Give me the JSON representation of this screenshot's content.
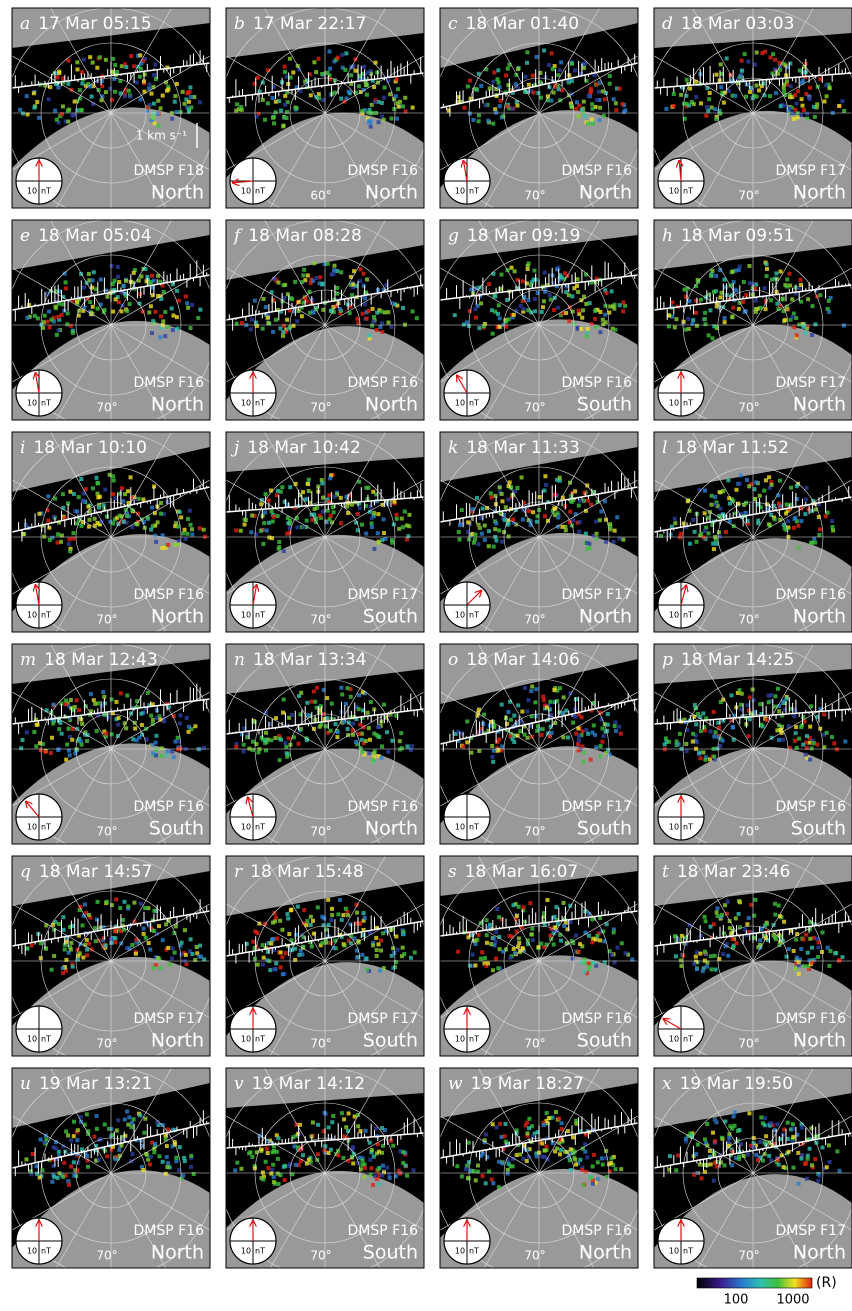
{
  "panels": [
    {
      "letter": "a",
      "time": "17 Mar 05:15",
      "satellite": "DMSP F18",
      "hemisphere": "North",
      "imf_arrow_deg": 0
    },
    {
      "letter": "b",
      "time": "17 Mar 22:17",
      "satellite": "DMSP F16",
      "hemisphere": "North",
      "latitude": "60°",
      "imf_arrow_deg": -95
    },
    {
      "letter": "c",
      "time": "18 Mar 01:40",
      "satellite": "DMSP F16",
      "hemisphere": "North",
      "latitude": "70°",
      "imf_arrow_deg": -10
    },
    {
      "letter": "d",
      "time": "18 Mar 03:03",
      "satellite": "DMSP F17",
      "hemisphere": "North",
      "latitude": "70°",
      "imf_arrow_deg": -5
    },
    {
      "letter": "e",
      "time": "18 Mar 05:04",
      "satellite": "DMSP F16",
      "hemisphere": "North",
      "latitude": "70°",
      "imf_arrow_deg": -10
    },
    {
      "letter": "f",
      "time": "18 Mar 08:28",
      "satellite": "DMSP F16",
      "hemisphere": "North",
      "latitude": "70°",
      "imf_arrow_deg": 0
    },
    {
      "letter": "g",
      "time": "18 Mar 09:19",
      "satellite": "DMSP F16",
      "hemisphere": "South",
      "latitude": "70°",
      "imf_arrow_deg": -30
    },
    {
      "letter": "h",
      "time": "18 Mar 09:51",
      "satellite": "DMSP F17",
      "hemisphere": "North",
      "latitude": "70°",
      "imf_arrow_deg": 0
    },
    {
      "letter": "i",
      "time": "18 Mar 10:10",
      "satellite": "DMSP F16",
      "hemisphere": "North",
      "latitude": "70°",
      "imf_arrow_deg": -10
    },
    {
      "letter": "j",
      "time": "18 Mar 10:42",
      "satellite": "DMSP F17",
      "hemisphere": "South",
      "latitude": "70°",
      "imf_arrow_deg": 10
    },
    {
      "letter": "k",
      "time": "18 Mar 11:33",
      "satellite": "DMSP F17",
      "hemisphere": "North",
      "latitude": "70°",
      "imf_arrow_deg": 45
    },
    {
      "letter": "l",
      "time": "18 Mar 11:52",
      "satellite": "DMSP F16",
      "hemisphere": "North",
      "latitude": "70°",
      "imf_arrow_deg": 15
    },
    {
      "letter": "m",
      "time": "18 Mar 12:43",
      "satellite": "DMSP F16",
      "hemisphere": "South",
      "latitude": "70°",
      "imf_arrow_deg": -40
    },
    {
      "letter": "n",
      "time": "18 Mar 13:34",
      "satellite": "DMSP F16",
      "hemisphere": "North",
      "latitude": "70°",
      "imf_arrow_deg": -15
    },
    {
      "letter": "o",
      "time": "18 Mar 14:06",
      "satellite": "DMSP F17",
      "hemisphere": "South",
      "latitude": "70°"
    },
    {
      "letter": "p",
      "time": "18 Mar 14:25",
      "satellite": "DMSP F16",
      "hemisphere": "South",
      "latitude": "70°",
      "imf_arrow_deg": 0
    },
    {
      "letter": "q",
      "time": "18 Mar 14:57",
      "satellite": "DMSP F17",
      "hemisphere": "North",
      "latitude": "70°"
    },
    {
      "letter": "r",
      "time": "18 Mar 15:48",
      "satellite": "DMSP F17",
      "hemisphere": "South",
      "latitude": "70°",
      "imf_arrow_deg": 0
    },
    {
      "letter": "s",
      "time": "18 Mar 16:07",
      "satellite": "DMSP F16",
      "hemisphere": "South",
      "latitude": "70°",
      "imf_arrow_deg": 0
    },
    {
      "letter": "t",
      "time": "18 Mar 23:46",
      "satellite": "DMSP F16",
      "hemisphere": "North",
      "latitude": "70°",
      "imf_arrow_deg": -60
    },
    {
      "letter": "u",
      "time": "19 Mar 13:21",
      "satellite": "DMSP F16",
      "hemisphere": "North",
      "latitude": "70°",
      "imf_arrow_deg": 0
    },
    {
      "letter": "v",
      "time": "19 Mar 14:12",
      "satellite": "DMSP F16",
      "hemisphere": "South",
      "latitude": "70°",
      "imf_arrow_deg": 0
    },
    {
      "letter": "w",
      "time": "19 Mar 18:27",
      "satellite": "DMSP F16",
      "hemisphere": "North",
      "latitude": "70°",
      "imf_arrow_deg": 0
    },
    {
      "letter": "x",
      "time": "19 Mar 19:50",
      "satellite": "DMSP F17",
      "hemisphere": "North",
      "latitude": "70°",
      "imf_arrow_deg": 0
    }
  ],
  "compass_scale": {
    "value": "10",
    "unit": "nT"
  },
  "velocity_scale": "1 km s⁻¹",
  "colorbar": {
    "ticks": [
      "100",
      "1000"
    ],
    "unit": "(R)"
  }
}
